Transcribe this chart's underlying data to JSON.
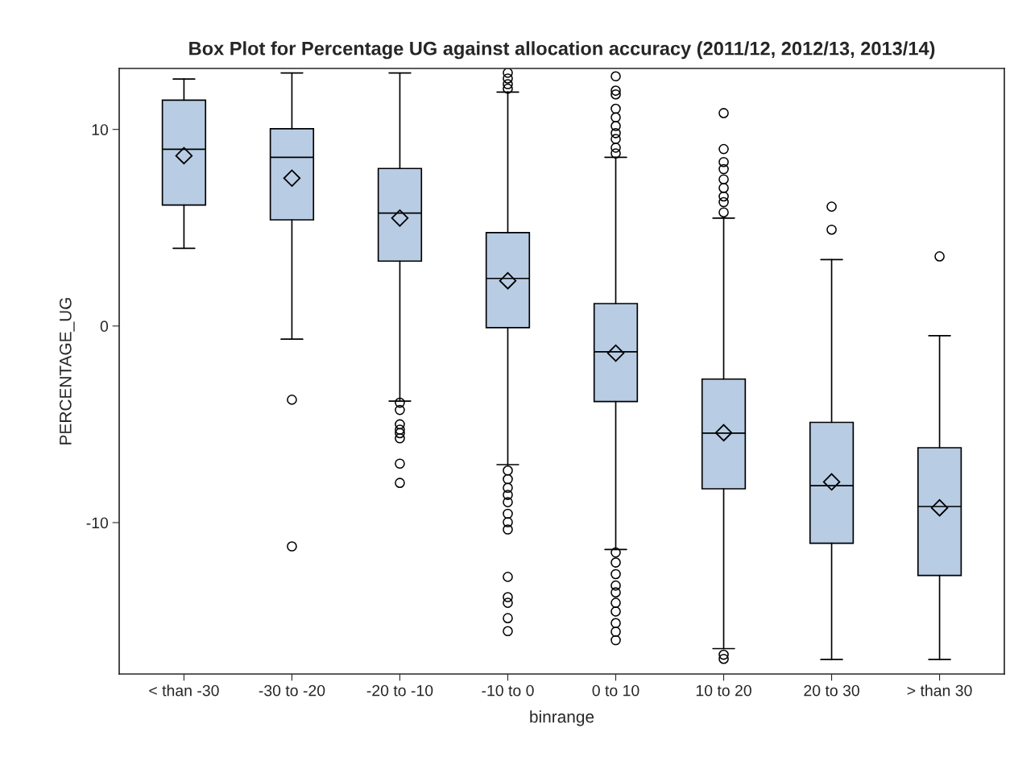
{
  "chart_data": {
    "type": "box",
    "title": "Box Plot for Percentage UG against allocation accuracy (2011/12, 2012/13, 2013/14)",
    "xlabel": "binrange",
    "ylabel": "PERCENTAGE_UG",
    "categories": [
      "< than -30",
      "-30 to -20",
      "-20 to -10",
      "-10 to 0",
      "0 to 10",
      "10 to 20",
      "20 to 30",
      "> than 30"
    ],
    "color": "#b8cce4",
    "ylim": [
      -17.7,
      13.1
    ],
    "yticks": [
      -10,
      0,
      10
    ],
    "grid": false,
    "boxes": [
      {
        "low": 3.95,
        "q1": 6.15,
        "median": 8.99,
        "q3": 11.49,
        "high": 12.56,
        "mean": 8.66
      },
      {
        "low": -0.67,
        "q1": 5.4,
        "median": 8.58,
        "q3": 10.03,
        "high": 12.87,
        "mean": 7.52,
        "outliers": [
          -3.75,
          -11.21
        ]
      },
      {
        "low": -3.82,
        "q1": 3.3,
        "median": 5.74,
        "q3": 8.01,
        "high": 12.87,
        "mean": 5.49,
        "outliers": [
          -3.9,
          -4.27,
          -5.0,
          -5.27,
          -5.45,
          -5.71,
          -7.0,
          -7.98
        ]
      },
      {
        "low": -7.05,
        "q1": -0.08,
        "median": 2.42,
        "q3": 4.75,
        "high": 11.9,
        "mean": 2.3,
        "outliers": [
          12.88,
          12.59,
          12.3,
          12.07,
          -7.35,
          -7.79,
          -8.23,
          -8.59,
          -8.96,
          -9.55,
          -9.98,
          -10.35,
          -12.76,
          -13.79,
          -14.08,
          -14.86,
          -15.52
        ]
      },
      {
        "low": -11.37,
        "q1": -3.84,
        "median": -1.31,
        "q3": 1.14,
        "high": 8.58,
        "mean": -1.38,
        "outliers": [
          12.7,
          11.97,
          11.78,
          11.05,
          10.61,
          10.17,
          9.81,
          9.51,
          9.07,
          8.78,
          -11.52,
          -12.03,
          -12.62,
          -13.2,
          -13.55,
          -14.08,
          -14.52,
          -15.11,
          -15.55,
          -15.98
        ]
      },
      {
        "low": -16.41,
        "q1": -8.28,
        "median": -5.45,
        "q3": -2.7,
        "high": 5.49,
        "mean": -5.43,
        "outliers": [
          10.83,
          9.0,
          8.34,
          7.98,
          7.46,
          7.02,
          6.59,
          6.3,
          5.78,
          -16.72,
          -16.93
        ]
      },
      {
        "low": -16.96,
        "q1": -11.05,
        "median": -8.12,
        "q3": -4.9,
        "high": 3.38,
        "mean": -7.93,
        "outliers": [
          6.07,
          4.9
        ]
      },
      {
        "low": -16.96,
        "q1": -12.69,
        "median": -9.18,
        "q3": -6.19,
        "high": -0.49,
        "mean": -9.25,
        "outliers": [
          3.54
        ]
      }
    ]
  }
}
